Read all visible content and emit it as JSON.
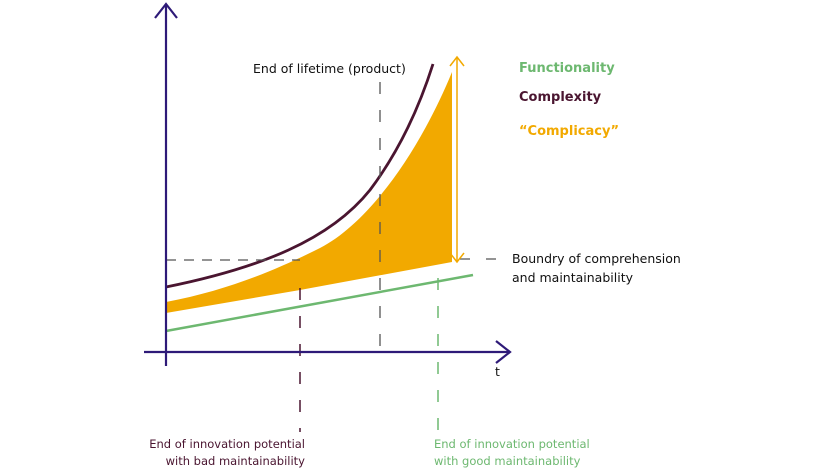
{
  "colors": {
    "axis": "#2e1a78",
    "functionality": "#6db870",
    "complexity": "#4a1530",
    "complicacy": "#f2a900",
    "guide": "#555555"
  },
  "legend": {
    "functionality": "Functionality",
    "complexity": "Complexity",
    "complicacy": "“Complicacy”"
  },
  "labels": {
    "end_of_lifetime": "End of lifetime (product)",
    "boundary_line1": "Boundry of comprehension",
    "boundary_line2": "and maintainability",
    "x_axis": "t",
    "bad_line1": "End of innovation potential",
    "bad_line2": "with bad maintainability",
    "good_line1": "End of innovation potential",
    "good_line2": "with good maintainability"
  }
}
